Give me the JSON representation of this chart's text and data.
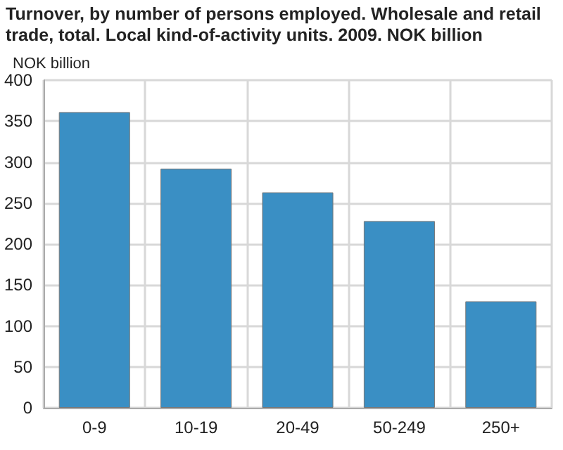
{
  "chart_data": {
    "type": "bar",
    "title": "Turnover, by number of persons employed. Wholesale and retail trade, total. Local kind-of-activity units. 2009. NOK billion",
    "ylabel": "NOK billion",
    "categories": [
      "0-9",
      "10-19",
      "20-49",
      "50-249",
      "250+"
    ],
    "values": [
      361,
      292,
      263,
      228,
      130
    ],
    "color": "#3a8fc4",
    "ylim": [
      0,
      400
    ],
    "yticks": [
      0,
      50,
      100,
      150,
      200,
      250,
      300,
      350,
      400
    ],
    "grid": true
  }
}
